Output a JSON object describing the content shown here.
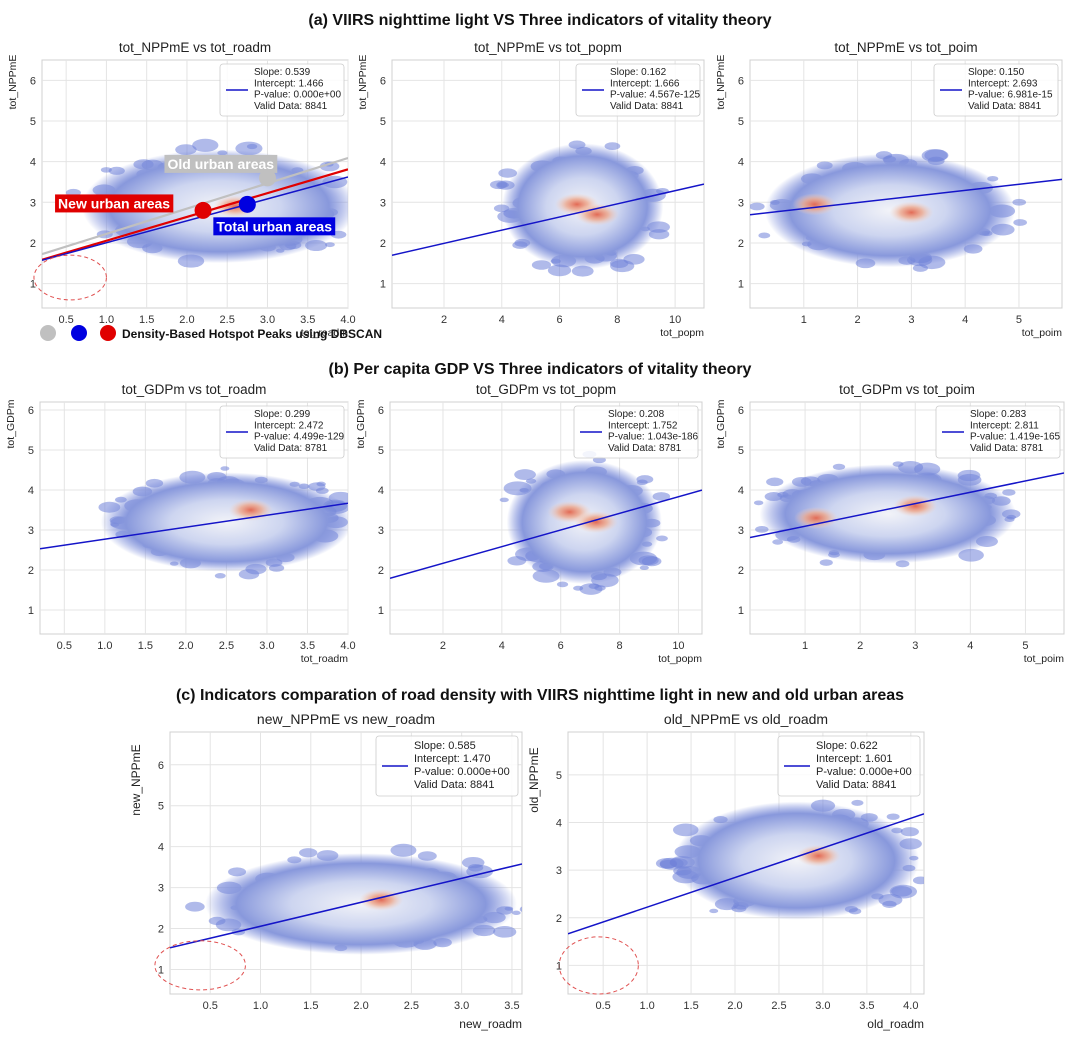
{
  "sections": [
    {
      "title": "(a) VIIRS nighttime light  VS Three indicators of vitality theory"
    },
    {
      "title": "(b) Per capita GDP VS Three indicators of vitality theory"
    },
    {
      "title": "(c) Indicators comparation of road density with VIIRS nighttime light in new and old urban areas"
    }
  ],
  "legend_note": "Density-Based Hotspot Peaks using DBSCAN",
  "colors": {
    "regression_line": "#1414c8",
    "density_low": "#6f82d8",
    "density_mid": "#e9edf7",
    "density_high": "#e58f72",
    "grid_bg": "#ffffff",
    "grid_line": "#e4e4e4",
    "old_urban": "#c0c0c0",
    "new_urban": "#e00000",
    "total_urban": "#0000e0",
    "circle_outline": "#e05050"
  },
  "chart_data": [
    {
      "type": "scatter",
      "title": "tot_NPPmE vs tot_roadm",
      "xlabel": "tot_roadm",
      "ylabel": "tot_NPPmE",
      "xlim": [
        0.2,
        4.0
      ],
      "ylim": [
        0.4,
        6.5
      ],
      "xticks": [
        0.5,
        1.0,
        1.5,
        2.0,
        2.5,
        3.0,
        3.5,
        4.0
      ],
      "yticks": [
        1,
        2,
        3,
        4,
        5,
        6
      ],
      "density_center": [
        2.4,
        2.9
      ],
      "density_spread": [
        1.1,
        0.9
      ],
      "hotspots": [
        [
          2.6,
          2.9
        ]
      ],
      "fit": {
        "slope": 0.539,
        "intercept": 1.466
      },
      "stats": [
        "Slope: 0.539",
        "Intercept: 1.466",
        "P-value: 0.000e+00",
        "Valid Data: 8841"
      ],
      "extra_lines": [
        {
          "name": "Old urban areas",
          "slope": 0.622,
          "intercept": 1.601,
          "color": "#c0c0c0"
        },
        {
          "name": "New urban areas",
          "slope": 0.585,
          "intercept": 1.47,
          "color": "#e00000"
        }
      ],
      "annotations": [
        {
          "label": "Old urban areas",
          "x": 3.0,
          "y": 3.6,
          "color": "#c0c0c0"
        },
        {
          "label": "New urban areas",
          "x": 2.2,
          "y": 2.8,
          "color": "#e00000"
        },
        {
          "label": "Total urban areas",
          "x": 2.75,
          "y": 2.95,
          "color": "#0000e0"
        }
      ],
      "ellipse": {
        "x": 0.55,
        "y": 1.15,
        "rx": 0.45,
        "ry": 0.55
      }
    },
    {
      "type": "scatter",
      "title": "tot_NPPmE vs tot_popm",
      "xlabel": "tot_popm",
      "ylabel": "tot_NPPmE",
      "xlim": [
        0.2,
        11.0
      ],
      "ylim": [
        0.4,
        6.5
      ],
      "xticks": [
        2,
        4,
        6,
        8,
        10
      ],
      "yticks": [
        1,
        2,
        3,
        4,
        5,
        6
      ],
      "density_center": [
        6.8,
        2.9
      ],
      "density_spread": [
        1.8,
        1.0
      ],
      "hotspots": [
        [
          6.6,
          2.95
        ],
        [
          7.3,
          2.7
        ]
      ],
      "fit": {
        "slope": 0.162,
        "intercept": 1.666
      },
      "stats": [
        "Slope: 0.162",
        "Intercept: 1.666",
        "P-value: 4.567e-125",
        "Valid Data: 8841"
      ]
    },
    {
      "type": "scatter",
      "title": "tot_NPPmE vs tot_poim",
      "xlabel": "tot_poim",
      "ylabel": "tot_NPPmE",
      "xlim": [
        0.0,
        5.8
      ],
      "ylim": [
        0.4,
        6.5
      ],
      "xticks": [
        1,
        2,
        3,
        4,
        5
      ],
      "yticks": [
        1,
        2,
        3,
        4,
        5,
        6
      ],
      "density_center": [
        2.6,
        2.8
      ],
      "density_spread": [
        1.5,
        0.9
      ],
      "hotspots": [
        [
          1.2,
          2.95
        ],
        [
          3.0,
          2.75
        ]
      ],
      "fit": {
        "slope": 0.15,
        "intercept": 2.693
      },
      "stats": [
        "Slope: 0.150",
        "Intercept: 2.693",
        "P-value: 6.981e-15",
        "Valid Data: 8841"
      ]
    },
    {
      "type": "scatter",
      "title": "tot_GDPm vs tot_roadm",
      "xlabel": "tot_roadm",
      "ylabel": "tot_GDPm",
      "xlim": [
        0.2,
        4.0
      ],
      "ylim": [
        0.4,
        6.2
      ],
      "xticks": [
        0.5,
        1.0,
        1.5,
        2.0,
        2.5,
        3.0,
        3.5,
        4.0
      ],
      "yticks": [
        1,
        2,
        3,
        4,
        5,
        6
      ],
      "density_center": [
        2.5,
        3.2
      ],
      "density_spread": [
        1.0,
        0.8
      ],
      "hotspots": [
        [
          2.8,
          3.5
        ]
      ],
      "fit": {
        "slope": 0.299,
        "intercept": 2.472
      },
      "stats": [
        "Slope: 0.299",
        "Intercept: 2.472",
        "P-value: 4.499e-129",
        "Valid Data: 8781"
      ]
    },
    {
      "type": "scatter",
      "title": "tot_GDPm vs tot_popm",
      "xlabel": "tot_popm",
      "ylabel": "tot_GDPm",
      "xlim": [
        0.2,
        10.8
      ],
      "ylim": [
        0.4,
        6.2
      ],
      "xticks": [
        2,
        4,
        6,
        8,
        10
      ],
      "yticks": [
        1,
        2,
        3,
        4,
        5,
        6
      ],
      "density_center": [
        6.8,
        3.2
      ],
      "density_spread": [
        1.7,
        1.0
      ],
      "hotspots": [
        [
          6.3,
          3.45
        ],
        [
          7.2,
          3.2
        ]
      ],
      "fit": {
        "slope": 0.208,
        "intercept": 1.752
      },
      "stats": [
        "Slope: 0.208",
        "Intercept: 1.752",
        "P-value: 1.043e-186",
        "Valid Data: 8781"
      ]
    },
    {
      "type": "scatter",
      "title": "tot_GDPm vs tot_poim",
      "xlabel": "tot_poim",
      "ylabel": "tot_GDPm",
      "xlim": [
        0.0,
        5.7
      ],
      "ylim": [
        0.4,
        6.2
      ],
      "xticks": [
        1,
        2,
        3,
        4,
        5
      ],
      "yticks": [
        1,
        2,
        3,
        4,
        5,
        6
      ],
      "density_center": [
        2.5,
        3.4
      ],
      "density_spread": [
        1.5,
        0.8
      ],
      "hotspots": [
        [
          1.2,
          3.3
        ],
        [
          3.0,
          3.6
        ]
      ],
      "fit": {
        "slope": 0.283,
        "intercept": 2.811
      },
      "stats": [
        "Slope: 0.283",
        "Intercept: 2.811",
        "P-value: 1.419e-165",
        "Valid Data: 8781"
      ]
    },
    {
      "type": "scatter",
      "title": "new_NPPmE vs new_roadm",
      "xlabel": "new_roadm",
      "ylabel": "new_NPPmE",
      "xlim": [
        0.1,
        3.6
      ],
      "ylim": [
        0.4,
        6.8
      ],
      "xticks": [
        0.5,
        1.0,
        1.5,
        2.0,
        2.5,
        3.0,
        3.5
      ],
      "yticks": [
        1,
        2,
        3,
        4,
        5,
        6
      ],
      "density_center": [
        2.0,
        2.6
      ],
      "density_spread": [
        1.0,
        0.8
      ],
      "hotspots": [
        [
          2.2,
          2.7
        ]
      ],
      "fit": {
        "slope": 0.585,
        "intercept": 1.47
      },
      "stats": [
        "Slope: 0.585",
        "Intercept: 1.470",
        "P-value: 0.000e+00",
        "Valid Data: 8841"
      ],
      "ellipse": {
        "x": 0.4,
        "y": 1.1,
        "rx": 0.45,
        "ry": 0.6
      }
    },
    {
      "type": "scatter",
      "title": "old_NPPmE vs old_roadm",
      "xlabel": "old_roadm",
      "ylabel": "old_NPPmE",
      "xlim": [
        0.1,
        4.15
      ],
      "ylim": [
        0.4,
        5.9
      ],
      "xticks": [
        0.5,
        1.0,
        1.5,
        2.0,
        2.5,
        3.0,
        3.5,
        4.0
      ],
      "yticks": [
        1,
        2,
        3,
        4,
        5
      ],
      "density_center": [
        2.7,
        3.2
      ],
      "density_spread": [
        0.9,
        0.8
      ],
      "hotspots": [
        [
          2.95,
          3.3
        ]
      ],
      "fit": {
        "slope": 0.622,
        "intercept": 1.601
      },
      "stats": [
        "Slope: 0.622",
        "Intercept: 1.601",
        "P-value: 0.000e+00",
        "Valid Data: 8841"
      ],
      "ellipse": {
        "x": 0.45,
        "y": 1.0,
        "rx": 0.45,
        "ry": 0.6
      }
    }
  ]
}
